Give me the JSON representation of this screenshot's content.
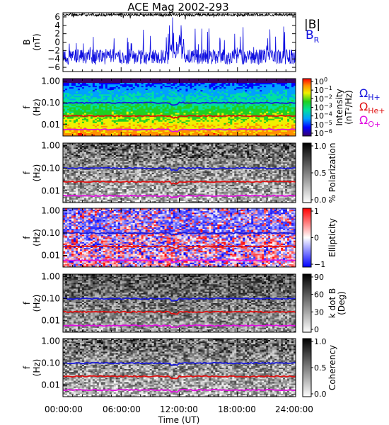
{
  "title": "ACE Mag 2002-293",
  "x_axis": {
    "label": "Time (UT)",
    "tick_labels": [
      "00:00:00",
      "06:00:00",
      "12:00:00",
      "18:00:00",
      "24:00:00"
    ],
    "range_hours": [
      0,
      24
    ]
  },
  "colors": {
    "b_total": "#000000",
    "b_r": "#1010e0",
    "omega_h": "#1a1adc",
    "omega_he": "#e01010",
    "omega_o": "#e010e0"
  },
  "chart_data": [
    {
      "type": "line",
      "panel": "magnetic-field",
      "ylabel_1": "B",
      "ylabel_2": "(nT)",
      "y_ticks": [
        "6",
        "4",
        "2",
        "0",
        "−2",
        "−4",
        "−6"
      ],
      "ylim": [
        -7,
        7
      ],
      "series": [
        {
          "name": "|B|",
          "mean": 6.5,
          "spread": 0.3
        },
        {
          "name": "B",
          "subscript": "R",
          "mean": -3.5,
          "spread": 1.8
        }
      ]
    },
    {
      "type": "heatmap",
      "panel": "intensity",
      "ylabel_1": "f",
      "ylabel_2": "(Hz)",
      "y_ticks": [
        "1.00",
        "0.10",
        "0.01"
      ],
      "y_scale": "log",
      "ylim": [
        0.003,
        1.3
      ],
      "colorbar": {
        "label_1": "Intensity",
        "label_2": "(nT²/Hz)",
        "ticks": [
          {
            "base": "10",
            "exp": "0"
          },
          {
            "base": "10",
            "exp": "−1"
          },
          {
            "base": "10",
            "exp": "−2"
          },
          {
            "base": "10",
            "exp": "−3"
          },
          {
            "base": "10",
            "exp": "−4"
          },
          {
            "base": "10",
            "exp": "−5"
          },
          {
            "base": "10",
            "exp": "−6"
          }
        ],
        "scale": "rainbow"
      }
    },
    {
      "type": "heatmap",
      "panel": "polarization",
      "ylabel_1": "f",
      "ylabel_2": "(Hz)",
      "y_ticks": [
        "1.00",
        "0.10",
        "0.01"
      ],
      "colorbar": {
        "label_1": "% Polarization",
        "ticks": [
          "1.0",
          "0.5",
          "0.0"
        ],
        "scale": "gray"
      }
    },
    {
      "type": "heatmap",
      "panel": "ellipticity",
      "ylabel_1": "f",
      "ylabel_2": "(Hz)",
      "y_ticks": [
        "1.00",
        "0.10",
        "0.01"
      ],
      "colorbar": {
        "label_1": "Ellipticity",
        "ticks": [
          "1",
          "0",
          "−1"
        ],
        "scale": "blue-white-red"
      }
    },
    {
      "type": "heatmap",
      "panel": "k-dot-b",
      "ylabel_1": "f",
      "ylabel_2": "(Hz)",
      "y_ticks": [
        "1.00",
        "0.10",
        "0.01"
      ],
      "colorbar": {
        "label_1": "k dot B",
        "label_2": "(Deg)",
        "ticks": [
          "90",
          "60",
          "30",
          "0"
        ],
        "scale": "gray"
      }
    },
    {
      "type": "heatmap",
      "panel": "coherency",
      "ylabel_1": "f",
      "ylabel_2": "(Hz)",
      "y_ticks": [
        "1.00",
        "0.10",
        "0.01"
      ],
      "colorbar": {
        "label_1": "Coherency",
        "ticks": [
          "1.0",
          "0.5",
          "0.0"
        ],
        "scale": "gray"
      }
    }
  ],
  "gyrofrequency_lines": [
    {
      "label": "Ω",
      "sub": "H+",
      "freq_hz": 0.1
    },
    {
      "label": "Ω",
      "sub": "He+",
      "freq_hz": 0.025
    },
    {
      "label": "Ω",
      "sub": "O+",
      "freq_hz": 0.006
    }
  ]
}
